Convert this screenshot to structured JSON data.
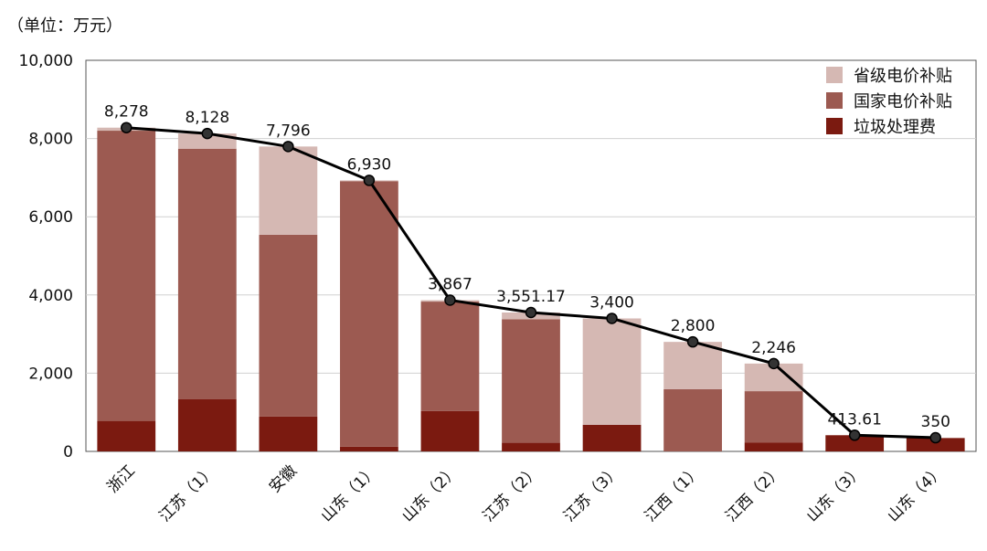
{
  "unit_label": "（单位：万元）",
  "chart_data": {
    "type": "bar",
    "stacked": true,
    "categories": [
      "浙江",
      "江苏（1）",
      "安徽",
      "山东（1）",
      "山东（2）",
      "江苏（2）",
      "江苏（3）",
      "江西（1）",
      "江西（2）",
      "山东（3）",
      "山东（4）"
    ],
    "series": [
      {
        "name": "垃圾处理费",
        "color": "#7b1a10",
        "values": [
          780,
          1340,
          890,
          120,
          1030,
          220,
          680,
          0,
          230,
          413.61,
          340
        ]
      },
      {
        "name": "国家电价补贴",
        "color": "#9c5a51",
        "values": [
          7420,
          6400,
          4650,
          6790,
          2800,
          3160,
          0,
          1590,
          1310,
          0,
          0
        ]
      },
      {
        "name": "省级电价补贴",
        "color": "#d5b8b3",
        "values": [
          78,
          388,
          2256,
          20,
          37,
          171.17,
          2720,
          1210,
          706,
          0,
          10
        ]
      }
    ],
    "total_line": {
      "values": [
        8278,
        8128,
        7796,
        6930,
        3867,
        3551.17,
        3400,
        2800,
        2246,
        413.61,
        350
      ],
      "labels": [
        "8,278",
        "8,128",
        "7,796",
        "6,930",
        "3,867",
        "3,551.17",
        "3,400",
        "2,800",
        "2,246",
        "413.61",
        "350"
      ],
      "color": "#000000"
    },
    "ylim": [
      0,
      10000
    ],
    "yticks": [
      0,
      2000,
      4000,
      6000,
      8000,
      10000
    ],
    "ytick_labels": [
      "0",
      "2,000",
      "4,000",
      "6,000",
      "8,000",
      "10,000"
    ],
    "legend_order": [
      "省级电价补贴",
      "国家电价补贴",
      "垃圾处理费"
    ],
    "legend_position": "top-right",
    "grid": true
  }
}
